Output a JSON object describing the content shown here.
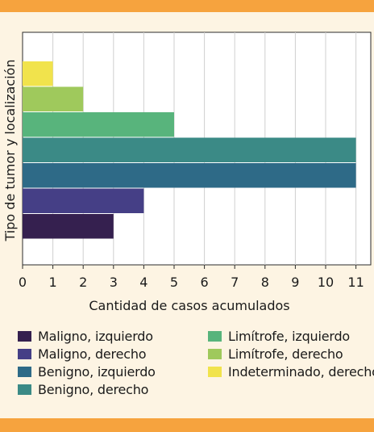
{
  "chart_data": {
    "type": "bar",
    "orientation": "horizontal",
    "xlabel": "Cantidad de casos acumulados",
    "ylabel": "Tipo de tumor y localización",
    "xlim": [
      0,
      11
    ],
    "xticks": [
      0,
      1,
      2,
      3,
      4,
      5,
      6,
      7,
      8,
      9,
      10,
      11
    ],
    "grid": "vertical",
    "legend_position": "bottom",
    "series": [
      {
        "name": "Maligno, izquierdo",
        "value": 3,
        "color": "#35204f"
      },
      {
        "name": "Maligno, derecho",
        "value": 4,
        "color": "#453f86"
      },
      {
        "name": "Benigno, izquierdo",
        "value": 11,
        "color": "#2e6a87"
      },
      {
        "name": "Benigno, derecho",
        "value": 11,
        "color": "#3b8a86"
      },
      {
        "name": "Limítrofe, izquierdo",
        "value": 5,
        "color": "#58b47c"
      },
      {
        "name": "Limítrofe, derecho",
        "value": 2,
        "color": "#9fc95c"
      },
      {
        "name": "Indeterminado, derecho",
        "value": 1,
        "color": "#f1e34c"
      }
    ]
  }
}
